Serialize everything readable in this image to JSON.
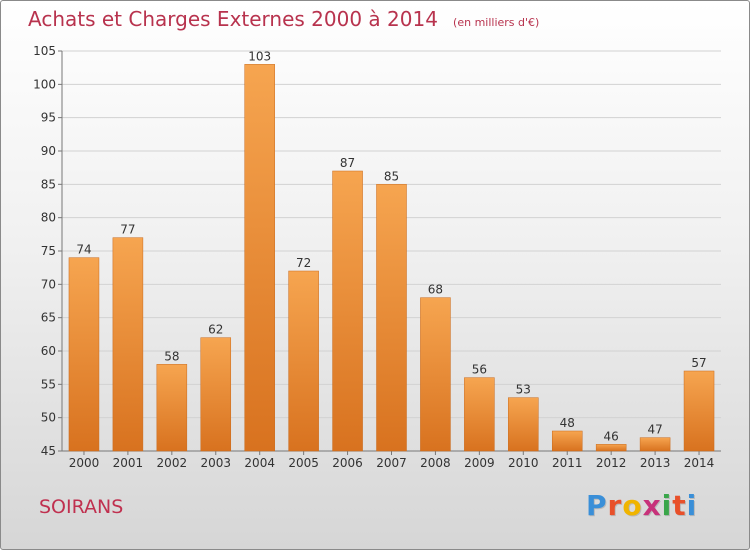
{
  "header": {
    "title": "Achats et Charges Externes 2000 à 2014",
    "subtitle": "(en milliers d'€)"
  },
  "footer": {
    "commune": "SOIRANS",
    "logo_text": "Proxiti",
    "logo_colors": [
      "#3a8fd8",
      "#e8502a",
      "#f0b400",
      "#c7327a",
      "#3aa64a",
      "#e8502a",
      "#3a8fd8"
    ]
  },
  "colors": {
    "title": "#b8334e",
    "bar_top": "#f6a550",
    "bar_bottom": "#d8721f",
    "grid": "#d2d2d2"
  },
  "chart_data": {
    "type": "bar",
    "categories": [
      "2000",
      "2001",
      "2002",
      "2003",
      "2004",
      "2005",
      "2006",
      "2007",
      "2008",
      "2009",
      "2010",
      "2011",
      "2012",
      "2013",
      "2014"
    ],
    "values": [
      74,
      77,
      58,
      62,
      103,
      72,
      87,
      85,
      68,
      56,
      53,
      48,
      46,
      47,
      57
    ],
    "ylim": [
      45,
      105
    ],
    "yticks": [
      45,
      50,
      55,
      60,
      65,
      70,
      75,
      80,
      85,
      90,
      95,
      100,
      105
    ],
    "grid": true,
    "data_labels": true
  }
}
